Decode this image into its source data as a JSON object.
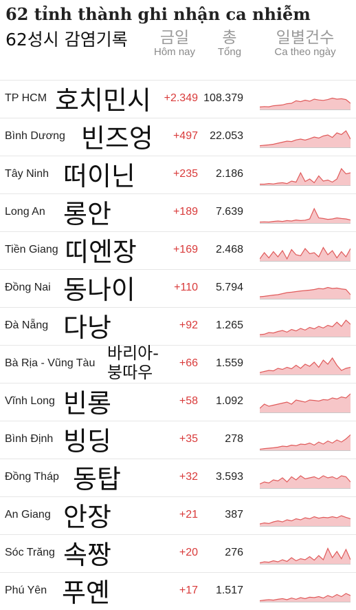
{
  "header": {
    "title": "62 tỉnh thành ghi nhận ca nhiễm",
    "subtitle": "62성시 감염기록"
  },
  "columns": {
    "today_ko": "금일",
    "today_vi": "Hôm nay",
    "total_ko": "총",
    "total_vi": "Tổng",
    "daily_ko": "일별건수",
    "daily_vi": "Ca theo ngày"
  },
  "colors": {
    "increase": "#d93a3a",
    "spark_fill": "#f6c6c8",
    "spark_line": "#e05a5a",
    "baseline": "#c8c8c8"
  },
  "rows": [
    {
      "province": "TP HCM",
      "korean": "호치민시",
      "today": "+2.349",
      "total": "108.379",
      "series": [
        0.12,
        0.14,
        0.13,
        0.18,
        0.2,
        0.22,
        0.28,
        0.3,
        0.42,
        0.38,
        0.45,
        0.4,
        0.5,
        0.46,
        0.44,
        0.48,
        0.55,
        0.5,
        0.52,
        0.48,
        0.3
      ]
    },
    {
      "province": "Bình Dương",
      "korean": "빈즈엉",
      "today": "+497",
      "total": "22.053",
      "series": [
        0.08,
        0.1,
        0.12,
        0.15,
        0.2,
        0.25,
        0.3,
        0.28,
        0.36,
        0.4,
        0.35,
        0.42,
        0.5,
        0.45,
        0.55,
        0.6,
        0.48,
        0.7,
        0.62,
        0.8,
        0.4
      ]
    },
    {
      "province": "Tây Ninh",
      "korean": "떠이닌",
      "today": "+235",
      "total": "2.186",
      "series": [
        0.05,
        0.05,
        0.08,
        0.06,
        0.1,
        0.12,
        0.08,
        0.2,
        0.15,
        0.6,
        0.18,
        0.3,
        0.12,
        0.45,
        0.2,
        0.25,
        0.15,
        0.3,
        0.8,
        0.55,
        0.6
      ]
    },
    {
      "province": "Long An",
      "korean": "롱안",
      "today": "+189",
      "total": "7.639",
      "series": [
        0.05,
        0.06,
        0.05,
        0.08,
        0.1,
        0.08,
        0.12,
        0.1,
        0.15,
        0.12,
        0.14,
        0.2,
        0.7,
        0.25,
        0.22,
        0.18,
        0.2,
        0.25,
        0.22,
        0.2,
        0.15
      ]
    },
    {
      "province": "Tiền Giang",
      "korean": "띠엔장",
      "today": "+169",
      "total": "2.468",
      "series": [
        0.1,
        0.4,
        0.15,
        0.45,
        0.2,
        0.5,
        0.1,
        0.55,
        0.3,
        0.25,
        0.6,
        0.35,
        0.4,
        0.2,
        0.65,
        0.3,
        0.5,
        0.15,
        0.45,
        0.2,
        0.6
      ]
    },
    {
      "province": "Đồng Nai",
      "korean": "동나이",
      "today": "+110",
      "total": "5.794",
      "series": [
        0.1,
        0.12,
        0.15,
        0.18,
        0.2,
        0.25,
        0.3,
        0.32,
        0.35,
        0.38,
        0.4,
        0.42,
        0.45,
        0.5,
        0.48,
        0.55,
        0.5,
        0.52,
        0.48,
        0.45,
        0.2
      ]
    },
    {
      "province": "Đà Nẵng",
      "korean": "다낭",
      "today": "+92",
      "total": "1.265",
      "series": [
        0.1,
        0.12,
        0.2,
        0.18,
        0.25,
        0.3,
        0.22,
        0.35,
        0.28,
        0.4,
        0.32,
        0.45,
        0.38,
        0.5,
        0.42,
        0.55,
        0.48,
        0.7,
        0.5,
        0.8,
        0.6
      ]
    },
    {
      "province": "Bà Rịa - Vũng Tàu",
      "korean": "바리아-붕따우",
      "today": "+66",
      "total": "1.559",
      "series": [
        0.1,
        0.15,
        0.2,
        0.18,
        0.3,
        0.25,
        0.35,
        0.28,
        0.45,
        0.3,
        0.5,
        0.4,
        0.6,
        0.35,
        0.7,
        0.5,
        0.8,
        0.45,
        0.2,
        0.3,
        0.35
      ]
    },
    {
      "province": "Vĩnh Long",
      "korean": "빈롱",
      "today": "+58",
      "total": "1.092",
      "series": [
        0.2,
        0.4,
        0.3,
        0.35,
        0.4,
        0.45,
        0.5,
        0.4,
        0.6,
        0.55,
        0.5,
        0.6,
        0.58,
        0.55,
        0.62,
        0.6,
        0.7,
        0.65,
        0.75,
        0.7,
        0.9
      ]
    },
    {
      "province": "Bình Định",
      "korean": "빙딩",
      "today": "+35",
      "total": "278",
      "series": [
        0.05,
        0.08,
        0.1,
        0.12,
        0.15,
        0.2,
        0.18,
        0.25,
        0.22,
        0.3,
        0.28,
        0.35,
        0.25,
        0.4,
        0.3,
        0.45,
        0.35,
        0.5,
        0.4,
        0.55,
        0.75
      ]
    },
    {
      "province": "Đồng Tháp",
      "korean": "동탑",
      "today": "+32",
      "total": "3.593",
      "series": [
        0.2,
        0.3,
        0.25,
        0.4,
        0.35,
        0.5,
        0.3,
        0.55,
        0.4,
        0.6,
        0.45,
        0.5,
        0.55,
        0.45,
        0.6,
        0.5,
        0.55,
        0.45,
        0.6,
        0.55,
        0.3
      ]
    },
    {
      "province": "An Giang",
      "korean": "안장",
      "today": "+21",
      "total": "387",
      "series": [
        0.1,
        0.15,
        0.12,
        0.2,
        0.25,
        0.2,
        0.3,
        0.25,
        0.35,
        0.3,
        0.4,
        0.35,
        0.45,
        0.38,
        0.42,
        0.4,
        0.45,
        0.4,
        0.5,
        0.42,
        0.35
      ]
    },
    {
      "province": "Sóc Trăng",
      "korean": "속짱",
      "today": "+20",
      "total": "276",
      "series": [
        0.05,
        0.1,
        0.08,
        0.15,
        0.1,
        0.2,
        0.12,
        0.3,
        0.15,
        0.25,
        0.2,
        0.35,
        0.18,
        0.4,
        0.2,
        0.75,
        0.3,
        0.6,
        0.25,
        0.7,
        0.2
      ]
    },
    {
      "province": "Phú Yên",
      "korean": "푸옌",
      "today": "+17",
      "total": "1.517",
      "series": [
        0.05,
        0.08,
        0.1,
        0.08,
        0.12,
        0.15,
        0.1,
        0.18,
        0.12,
        0.2,
        0.15,
        0.22,
        0.2,
        0.25,
        0.18,
        0.3,
        0.22,
        0.35,
        0.25,
        0.4,
        0.3
      ]
    }
  ]
}
